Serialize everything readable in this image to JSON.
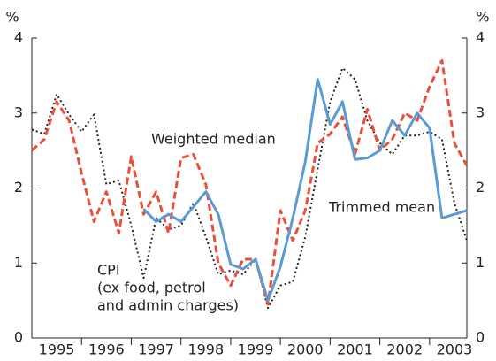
{
  "chart_data": {
    "type": "line",
    "x": [
      1995,
      1995.25,
      1995.5,
      1995.75,
      1996,
      1996.25,
      1996.5,
      1996.75,
      1997,
      1997.25,
      1997.5,
      1997.75,
      1998,
      1998.25,
      1998.5,
      1998.75,
      1999,
      1999.25,
      1999.5,
      1999.75,
      2000,
      2000.25,
      2000.5,
      2000.75,
      2001,
      2001.25,
      2001.5,
      2001.75,
      2002,
      2002.25,
      2002.5,
      2002.75,
      2003,
      2003.25,
      2003.5,
      2003.75
    ],
    "series": [
      {
        "name": "Weighted median",
        "color": "#e8503a",
        "dash": "dashed",
        "values": [
          2.5,
          2.65,
          3.15,
          2.9,
          2.2,
          1.55,
          1.95,
          1.4,
          2.42,
          1.65,
          1.95,
          1.4,
          2.4,
          2.45,
          2.05,
          1.0,
          0.7,
          1.05,
          1.05,
          0.45,
          1.7,
          1.3,
          1.7,
          2.6,
          2.72,
          2.95,
          2.45,
          3.05,
          2.5,
          2.65,
          3.0,
          2.9,
          3.35,
          3.7,
          2.6,
          2.3
        ]
      },
      {
        "name": "Trimmed mean",
        "color": "#5b9bd5",
        "dash": "solid",
        "values": [
          null,
          null,
          null,
          null,
          null,
          null,
          null,
          null,
          null,
          1.72,
          1.55,
          1.65,
          1.55,
          1.75,
          1.95,
          1.65,
          0.98,
          0.92,
          1.05,
          0.5,
          0.95,
          1.6,
          2.35,
          3.45,
          2.85,
          3.15,
          2.38,
          2.4,
          2.5,
          2.9,
          2.7,
          3.0,
          2.8,
          1.6,
          1.65,
          1.7
        ]
      },
      {
        "name": "CPI",
        "color": "#222222",
        "dash": "dotted",
        "values": [
          2.78,
          2.72,
          3.25,
          2.98,
          2.75,
          2.98,
          2.05,
          2.1,
          1.5,
          0.8,
          1.6,
          1.45,
          1.5,
          1.8,
          1.35,
          0.85,
          0.9,
          0.85,
          1.05,
          0.4,
          0.7,
          0.75,
          1.35,
          2.25,
          3.15,
          3.6,
          3.45,
          2.9,
          2.6,
          2.45,
          2.7,
          2.7,
          2.75,
          2.65,
          1.8,
          1.3
        ]
      }
    ],
    "cpi_note": [
      "(ex food, petrol",
      "and admin charges)"
    ],
    "ylabel": "%",
    "y2label": "%",
    "xlim": [
      1995,
      2003.75
    ],
    "xticks": [
      {
        "value": 1995.5,
        "label": "1995"
      },
      {
        "value": 1996.5,
        "label": "1996"
      },
      {
        "value": 1997.5,
        "label": "1997"
      },
      {
        "value": 1998.5,
        "label": "1998"
      },
      {
        "value": 1999.5,
        "label": "1999"
      },
      {
        "value": 2000.5,
        "label": "2000"
      },
      {
        "value": 2001.5,
        "label": "2001"
      },
      {
        "value": 2002.5,
        "label": "2002"
      },
      {
        "value": 2003.5,
        "label": "2003"
      }
    ],
    "xminorticks": [
      1996,
      1997,
      1998,
      1999,
      2000,
      2001,
      2002,
      2003
    ],
    "ylim": [
      0,
      4
    ],
    "yticks": [
      0,
      1,
      2,
      3,
      4
    ],
    "y2lim": [
      0,
      4
    ],
    "y2ticks": [
      0,
      1,
      2,
      3,
      4
    ]
  }
}
